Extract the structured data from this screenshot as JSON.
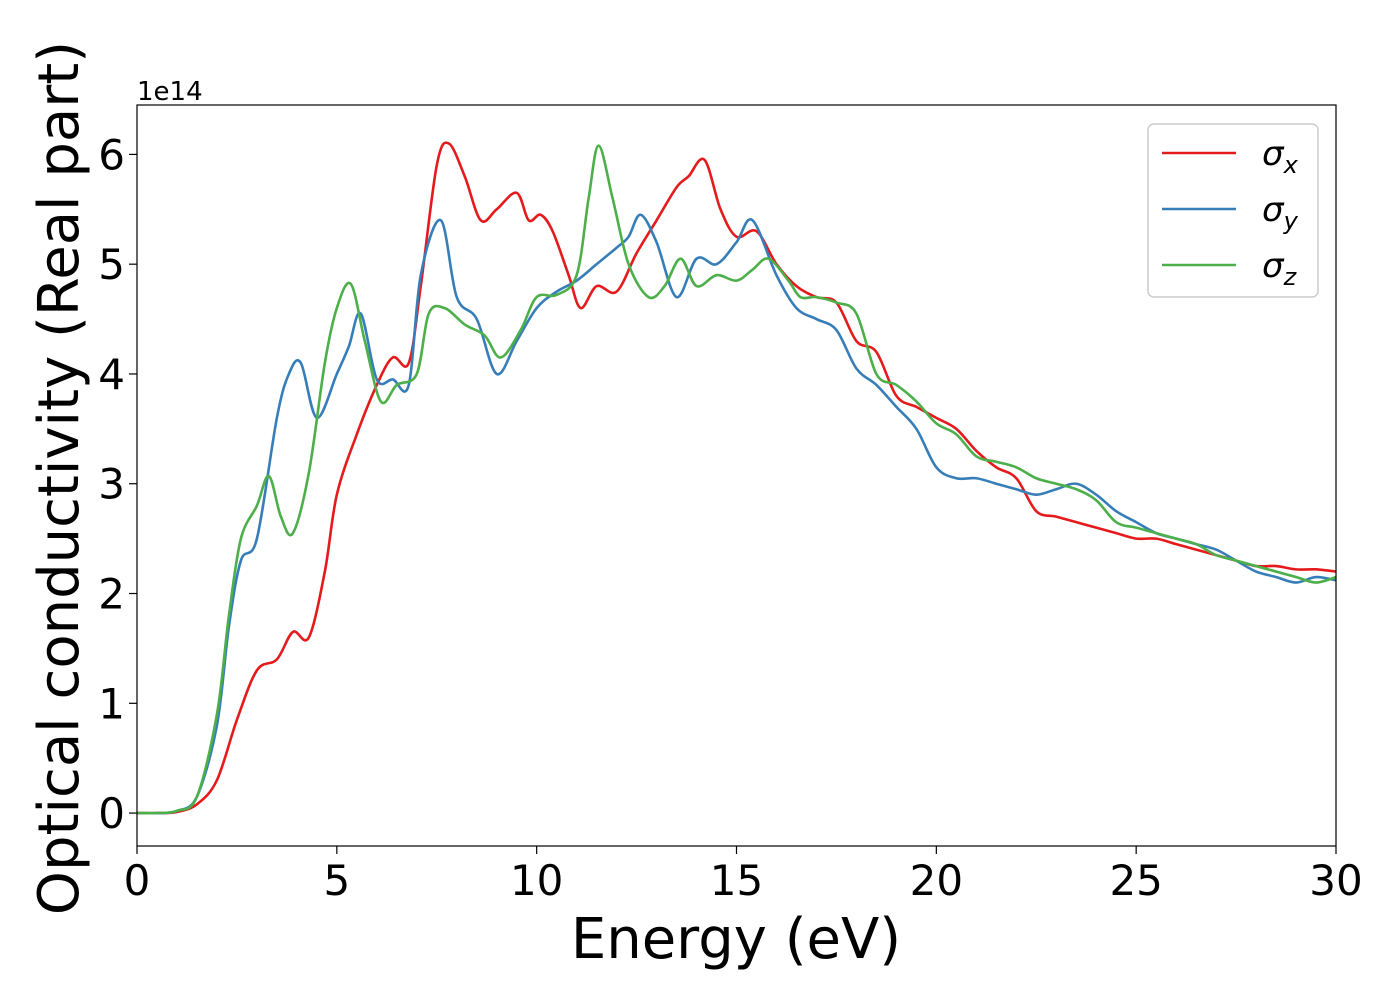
{
  "chart_data": {
    "type": "line",
    "title": "",
    "xlabel": "Energy (eV)",
    "ylabel": "Optical conductivity (Real part)",
    "y_offset_text": "1e14",
    "xlim": [
      0,
      30
    ],
    "ylim": [
      -0.3,
      6.45
    ],
    "x_ticks": [
      0,
      5,
      10,
      15,
      20,
      25,
      30
    ],
    "y_ticks": [
      0,
      1,
      2,
      3,
      4,
      5,
      6
    ],
    "grid": false,
    "legend_position": "top-right",
    "series": [
      {
        "name": "σx",
        "legend_main": "σ",
        "legend_sub": "x",
        "color": "#e41a1c",
        "points": [
          [
            0,
            0
          ],
          [
            0.5,
            0
          ],
          [
            1,
            0.01
          ],
          [
            1.5,
            0.08
          ],
          [
            2,
            0.3
          ],
          [
            2.5,
            0.85
          ],
          [
            3,
            1.3
          ],
          [
            3.5,
            1.4
          ],
          [
            3.9,
            1.65
          ],
          [
            4.3,
            1.6
          ],
          [
            4.7,
            2.2
          ],
          [
            5,
            2.9
          ],
          [
            5.5,
            3.45
          ],
          [
            6,
            3.9
          ],
          [
            6.4,
            4.15
          ],
          [
            6.8,
            4.1
          ],
          [
            7.1,
            4.8
          ],
          [
            7.5,
            5.9
          ],
          [
            7.8,
            6.1
          ],
          [
            8.2,
            5.8
          ],
          [
            8.6,
            5.4
          ],
          [
            9,
            5.5
          ],
          [
            9.5,
            5.65
          ],
          [
            9.8,
            5.4
          ],
          [
            10.1,
            5.45
          ],
          [
            10.4,
            5.3
          ],
          [
            10.8,
            4.9
          ],
          [
            11.1,
            4.6
          ],
          [
            11.5,
            4.8
          ],
          [
            12,
            4.75
          ],
          [
            12.5,
            5.1
          ],
          [
            13,
            5.4
          ],
          [
            13.5,
            5.7
          ],
          [
            13.8,
            5.8
          ],
          [
            14.2,
            5.95
          ],
          [
            14.6,
            5.5
          ],
          [
            15,
            5.25
          ],
          [
            15.5,
            5.3
          ],
          [
            16,
            5.0
          ],
          [
            16.5,
            4.8
          ],
          [
            17,
            4.7
          ],
          [
            17.5,
            4.65
          ],
          [
            18,
            4.3
          ],
          [
            18.5,
            4.2
          ],
          [
            19,
            3.8
          ],
          [
            19.5,
            3.7
          ],
          [
            20,
            3.6
          ],
          [
            20.5,
            3.5
          ],
          [
            21,
            3.3
          ],
          [
            21.5,
            3.15
          ],
          [
            22,
            3.05
          ],
          [
            22.5,
            2.75
          ],
          [
            23,
            2.7
          ],
          [
            23.5,
            2.65
          ],
          [
            24,
            2.6
          ],
          [
            24.5,
            2.55
          ],
          [
            25,
            2.5
          ],
          [
            25.5,
            2.5
          ],
          [
            26,
            2.45
          ],
          [
            26.5,
            2.4
          ],
          [
            27,
            2.35
          ],
          [
            27.5,
            2.3
          ],
          [
            28,
            2.25
          ],
          [
            28.5,
            2.25
          ],
          [
            29,
            2.22
          ],
          [
            29.5,
            2.22
          ],
          [
            30,
            2.2
          ]
        ]
      },
      {
        "name": "σy",
        "legend_main": "σ",
        "legend_sub": "y",
        "color": "#377eb8",
        "points": [
          [
            0,
            0
          ],
          [
            0.5,
            0
          ],
          [
            1,
            0.02
          ],
          [
            1.5,
            0.15
          ],
          [
            2,
            0.8
          ],
          [
            2.3,
            1.7
          ],
          [
            2.6,
            2.3
          ],
          [
            3,
            2.5
          ],
          [
            3.5,
            3.6
          ],
          [
            3.8,
            4.0
          ],
          [
            4.1,
            4.1
          ],
          [
            4.5,
            3.6
          ],
          [
            5,
            4.0
          ],
          [
            5.3,
            4.25
          ],
          [
            5.6,
            4.55
          ],
          [
            6,
            3.95
          ],
          [
            6.4,
            3.95
          ],
          [
            6.8,
            3.9
          ],
          [
            7.1,
            4.9
          ],
          [
            7.6,
            5.4
          ],
          [
            8,
            4.7
          ],
          [
            8.5,
            4.5
          ],
          [
            9,
            4.0
          ],
          [
            9.5,
            4.3
          ],
          [
            10,
            4.6
          ],
          [
            10.5,
            4.75
          ],
          [
            11,
            4.85
          ],
          [
            11.5,
            5.0
          ],
          [
            12,
            5.15
          ],
          [
            12.3,
            5.25
          ],
          [
            12.6,
            5.45
          ],
          [
            13,
            5.2
          ],
          [
            13.5,
            4.7
          ],
          [
            14,
            5.05
          ],
          [
            14.5,
            5.0
          ],
          [
            15,
            5.2
          ],
          [
            15.4,
            5.4
          ],
          [
            16,
            4.9
          ],
          [
            16.5,
            4.6
          ],
          [
            17,
            4.5
          ],
          [
            17.5,
            4.4
          ],
          [
            18,
            4.05
          ],
          [
            18.5,
            3.9
          ],
          [
            19,
            3.7
          ],
          [
            19.5,
            3.5
          ],
          [
            20,
            3.15
          ],
          [
            20.5,
            3.05
          ],
          [
            21,
            3.05
          ],
          [
            21.5,
            3.0
          ],
          [
            22,
            2.95
          ],
          [
            22.5,
            2.9
          ],
          [
            23,
            2.95
          ],
          [
            23.5,
            3.0
          ],
          [
            24,
            2.9
          ],
          [
            24.5,
            2.75
          ],
          [
            25,
            2.65
          ],
          [
            25.5,
            2.55
          ],
          [
            26,
            2.5
          ],
          [
            26.5,
            2.45
          ],
          [
            27,
            2.4
          ],
          [
            27.5,
            2.3
          ],
          [
            28,
            2.2
          ],
          [
            28.5,
            2.15
          ],
          [
            29,
            2.1
          ],
          [
            29.5,
            2.15
          ],
          [
            30,
            2.12
          ]
        ]
      },
      {
        "name": "σz",
        "legend_main": "σ",
        "legend_sub": "z",
        "color": "#4daf4a",
        "points": [
          [
            0,
            0
          ],
          [
            0.5,
            0
          ],
          [
            1,
            0.02
          ],
          [
            1.5,
            0.15
          ],
          [
            2,
            0.9
          ],
          [
            2.3,
            1.8
          ],
          [
            2.6,
            2.5
          ],
          [
            3,
            2.8
          ],
          [
            3.3,
            3.07
          ],
          [
            3.6,
            2.7
          ],
          [
            3.9,
            2.55
          ],
          [
            4.3,
            3.1
          ],
          [
            4.7,
            4.1
          ],
          [
            5,
            4.6
          ],
          [
            5.35,
            4.82
          ],
          [
            5.7,
            4.3
          ],
          [
            6.1,
            3.75
          ],
          [
            6.5,
            3.9
          ],
          [
            7,
            4.0
          ],
          [
            7.3,
            4.55
          ],
          [
            7.7,
            4.6
          ],
          [
            8.2,
            4.45
          ],
          [
            8.7,
            4.35
          ],
          [
            9.1,
            4.15
          ],
          [
            9.6,
            4.4
          ],
          [
            10,
            4.7
          ],
          [
            10.5,
            4.72
          ],
          [
            11,
            4.9
          ],
          [
            11.3,
            5.6
          ],
          [
            11.55,
            6.08
          ],
          [
            11.9,
            5.6
          ],
          [
            12.3,
            5.0
          ],
          [
            12.8,
            4.7
          ],
          [
            13.2,
            4.8
          ],
          [
            13.6,
            5.05
          ],
          [
            14,
            4.8
          ],
          [
            14.5,
            4.9
          ],
          [
            15,
            4.85
          ],
          [
            15.4,
            4.95
          ],
          [
            15.8,
            5.05
          ],
          [
            16.3,
            4.85
          ],
          [
            16.6,
            4.7
          ],
          [
            17,
            4.7
          ],
          [
            17.5,
            4.65
          ],
          [
            18,
            4.55
          ],
          [
            18.5,
            4.0
          ],
          [
            19,
            3.9
          ],
          [
            19.5,
            3.75
          ],
          [
            20,
            3.55
          ],
          [
            20.5,
            3.45
          ],
          [
            21,
            3.25
          ],
          [
            21.5,
            3.2
          ],
          [
            22,
            3.15
          ],
          [
            22.5,
            3.05
          ],
          [
            23,
            3.0
          ],
          [
            23.5,
            2.95
          ],
          [
            24,
            2.85
          ],
          [
            24.5,
            2.65
          ],
          [
            25,
            2.6
          ],
          [
            25.5,
            2.55
          ],
          [
            26,
            2.5
          ],
          [
            26.5,
            2.45
          ],
          [
            27,
            2.35
          ],
          [
            27.5,
            2.3
          ],
          [
            28,
            2.25
          ],
          [
            28.5,
            2.2
          ],
          [
            29,
            2.15
          ],
          [
            29.5,
            2.1
          ],
          [
            30,
            2.15
          ]
        ]
      }
    ]
  }
}
